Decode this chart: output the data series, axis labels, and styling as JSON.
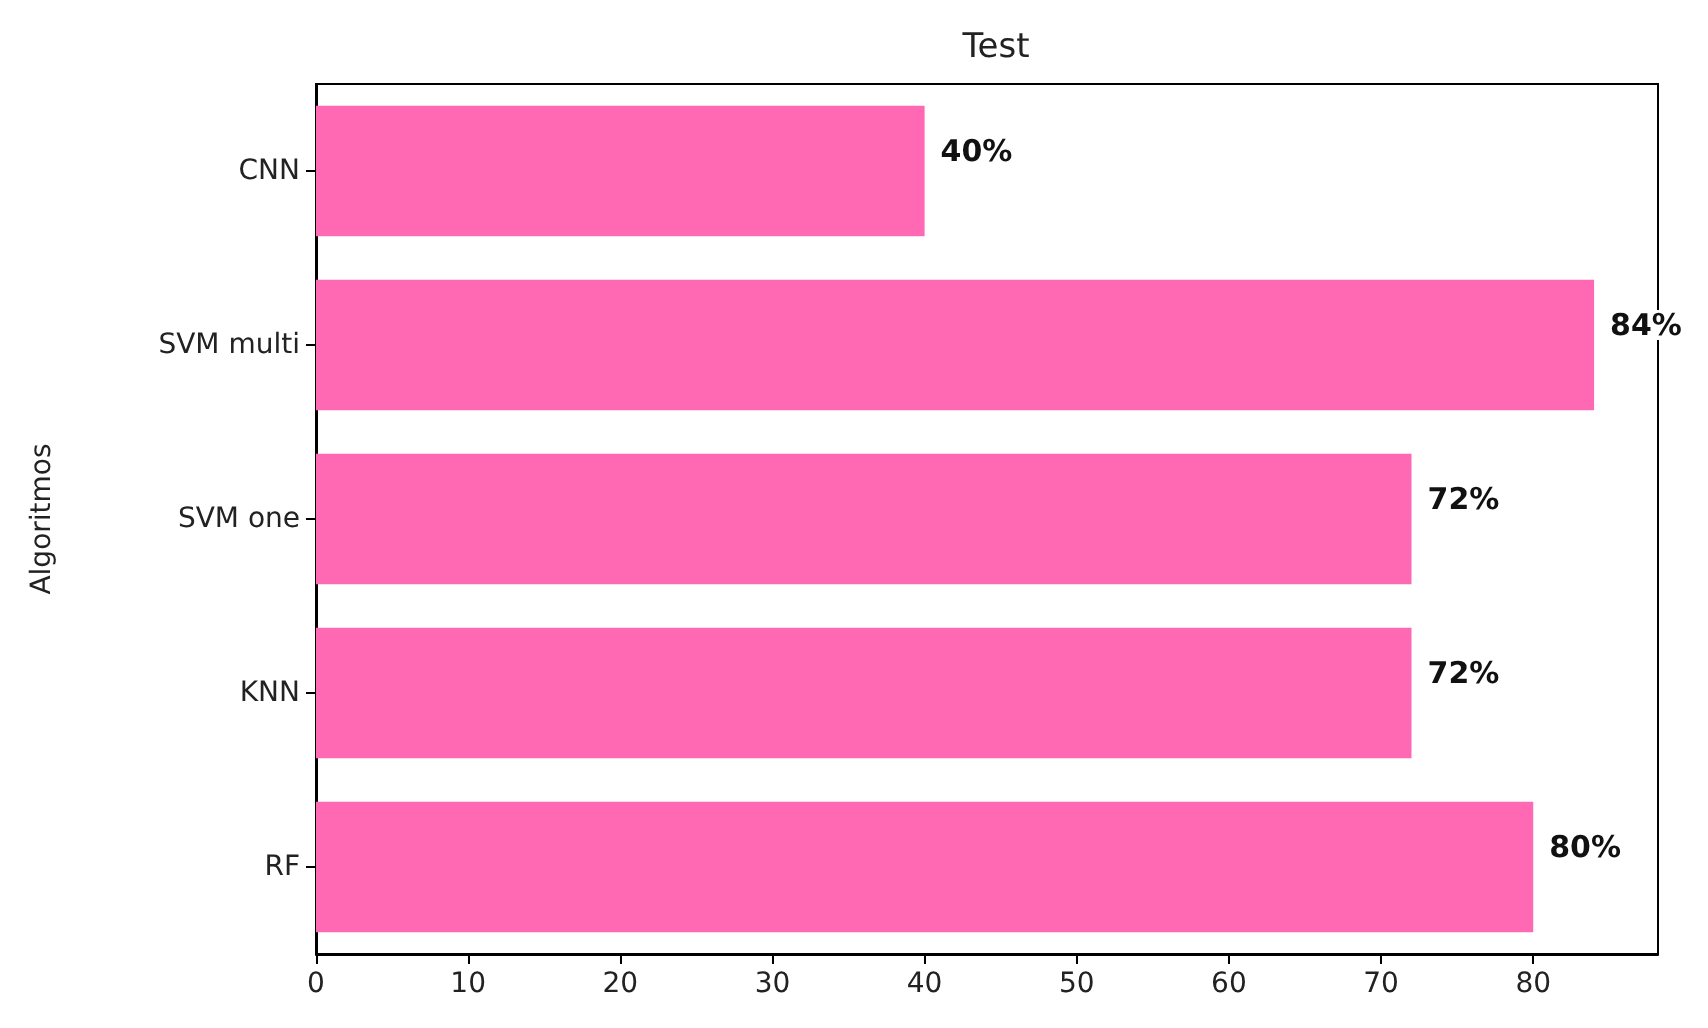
{
  "chart_data": {
    "type": "bar",
    "orientation": "horizontal",
    "title": "Test",
    "ylabel": "Algoritmos",
    "categories": [
      "CNN",
      "SVM multi",
      "SVM one",
      "KNN",
      "RF"
    ],
    "values": [
      40,
      84,
      72,
      72,
      80
    ],
    "value_labels": [
      "40%",
      "84%",
      "72%",
      "72%",
      "80%"
    ],
    "color": "#ff69b4",
    "xlim": [
      0,
      88.2
    ],
    "xticks": [
      0,
      10,
      20,
      30,
      40,
      50,
      60,
      70,
      80
    ],
    "grid": false
  }
}
